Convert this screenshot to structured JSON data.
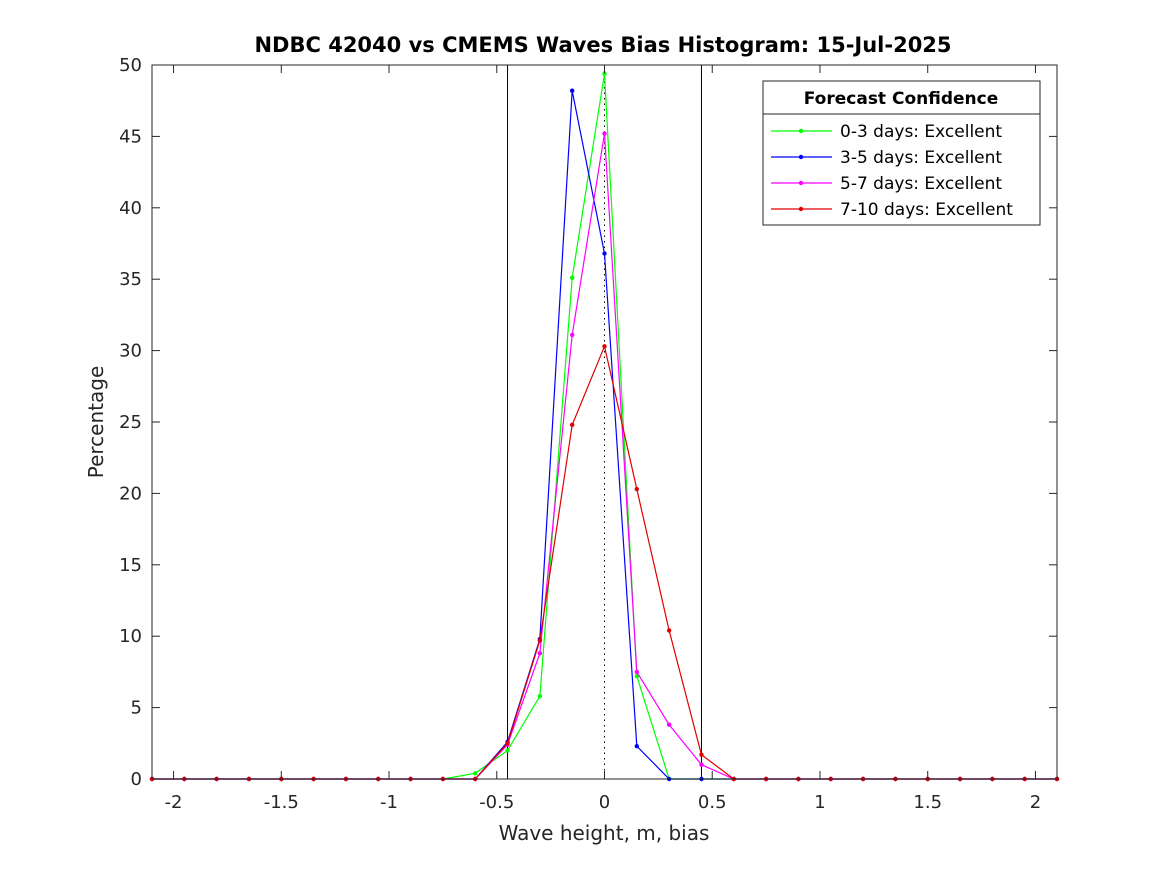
{
  "chart_data": {
    "type": "line",
    "title": "NDBC 42040 vs CMEMS Waves Bias Histogram: 15-Jul-2025",
    "xlabel": "Wave height, m, bias",
    "ylabel": "Percentage",
    "xlim": [
      -2.1,
      2.1
    ],
    "ylim": [
      0,
      50
    ],
    "xticks": [
      -2,
      -1.5,
      -1,
      -0.5,
      0,
      0.5,
      1,
      1.5,
      2
    ],
    "xtick_labels": [
      "-2",
      "-1.5",
      "-1",
      "-0.5",
      "0",
      "0.5",
      "1",
      "1.5",
      "2"
    ],
    "yticks": [
      0,
      5,
      10,
      15,
      20,
      25,
      30,
      35,
      40,
      45,
      50
    ],
    "ytick_labels": [
      "0",
      "5",
      "10",
      "15",
      "20",
      "25",
      "30",
      "35",
      "40",
      "45",
      "50"
    ],
    "grid": false,
    "legend_title": "Forecast Confidence",
    "legend_position": "top-right",
    "reference_lines": [
      {
        "x": -0.45,
        "style": "solid",
        "color": "#000000"
      },
      {
        "x": 0.45,
        "style": "solid",
        "color": "#000000"
      },
      {
        "x": 0,
        "style": "dotted",
        "color": "#000000"
      }
    ],
    "x": [
      -2.1,
      -1.95,
      -1.8,
      -1.65,
      -1.5,
      -1.35,
      -1.2,
      -1.05,
      -0.9,
      -0.75,
      -0.6,
      -0.45,
      -0.3,
      -0.15,
      0,
      0.15,
      0.3,
      0.45,
      0.6,
      0.75,
      0.9,
      1.05,
      1.2,
      1.35,
      1.5,
      1.65,
      1.8,
      1.95,
      2.1
    ],
    "series": [
      {
        "name": "0-3 days: Excellent",
        "color": "#00ff00",
        "values": [
          0,
          0,
          0,
          0,
          0,
          0,
          0,
          0,
          0,
          0,
          0.4,
          2.0,
          5.8,
          35.1,
          49.4,
          7.2,
          0,
          0,
          0,
          0,
          0,
          0,
          0,
          0,
          0,
          0,
          0,
          0,
          0
        ]
      },
      {
        "name": "3-5 days: Excellent",
        "color": "#0000ff",
        "values": [
          0,
          0,
          0,
          0,
          0,
          0,
          0,
          0,
          0,
          0,
          0,
          2.6,
          9.8,
          48.2,
          36.8,
          2.3,
          0,
          0,
          0,
          0,
          0,
          0,
          0,
          0,
          0,
          0,
          0,
          0,
          0
        ]
      },
      {
        "name": "5-7 days: Excellent",
        "color": "#ff00ff",
        "values": [
          0,
          0,
          0,
          0,
          0,
          0,
          0,
          0,
          0,
          0,
          0,
          2.4,
          8.8,
          31.1,
          45.2,
          7.5,
          3.8,
          1.0,
          0,
          0,
          0,
          0,
          0,
          0,
          0,
          0,
          0,
          0,
          0
        ]
      },
      {
        "name": "7-10 days: Excellent",
        "color": "#e00000",
        "values": [
          0,
          0,
          0,
          0,
          0,
          0,
          0,
          0,
          0,
          0,
          0,
          2.5,
          9.7,
          24.8,
          30.3,
          20.3,
          10.4,
          1.7,
          0,
          0,
          0,
          0,
          0,
          0,
          0,
          0,
          0,
          0,
          0
        ]
      }
    ]
  }
}
